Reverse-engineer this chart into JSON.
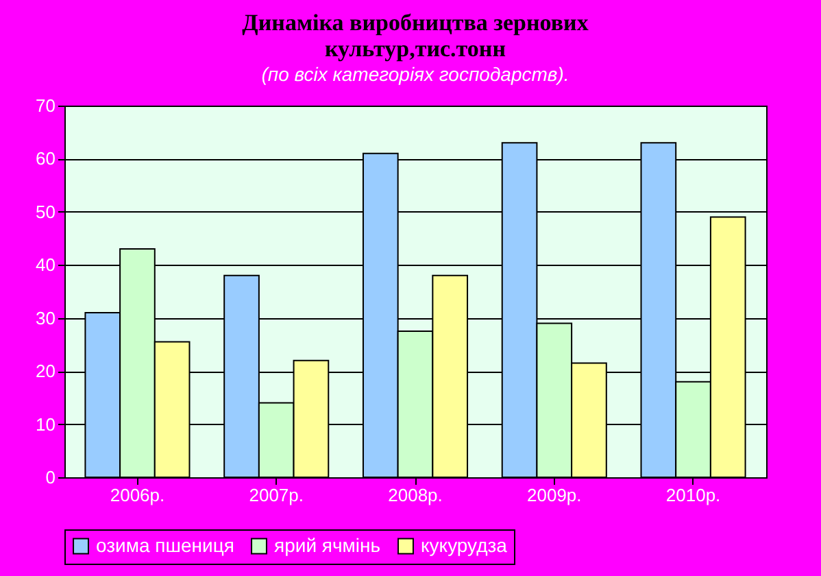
{
  "chart_data": {
    "type": "bar",
    "title": [
      "Динаміка виробництва зернових",
      "культур,тис.тонн"
    ],
    "subtitle": "(по всіх категоріях господарств).",
    "categories": [
      "2006р.",
      "2007р.",
      "2008р.",
      "2009р.",
      "2010р."
    ],
    "series": [
      {
        "name": "озима пшениця",
        "color": "#99ccff",
        "values": [
          31,
          38,
          61,
          63,
          63
        ]
      },
      {
        "name": "ярий ячмінь",
        "color": "#ccffcc",
        "values": [
          43,
          14,
          27.5,
          29,
          18
        ]
      },
      {
        "name": "кукурудза",
        "color": "#ffff99",
        "values": [
          25.5,
          22,
          38,
          21.5,
          49
        ]
      }
    ],
    "ylim": [
      0,
      70
    ],
    "yticks": [
      0,
      10,
      20,
      30,
      40,
      50,
      60,
      70
    ],
    "grid": "y",
    "legend": "bottom"
  }
}
